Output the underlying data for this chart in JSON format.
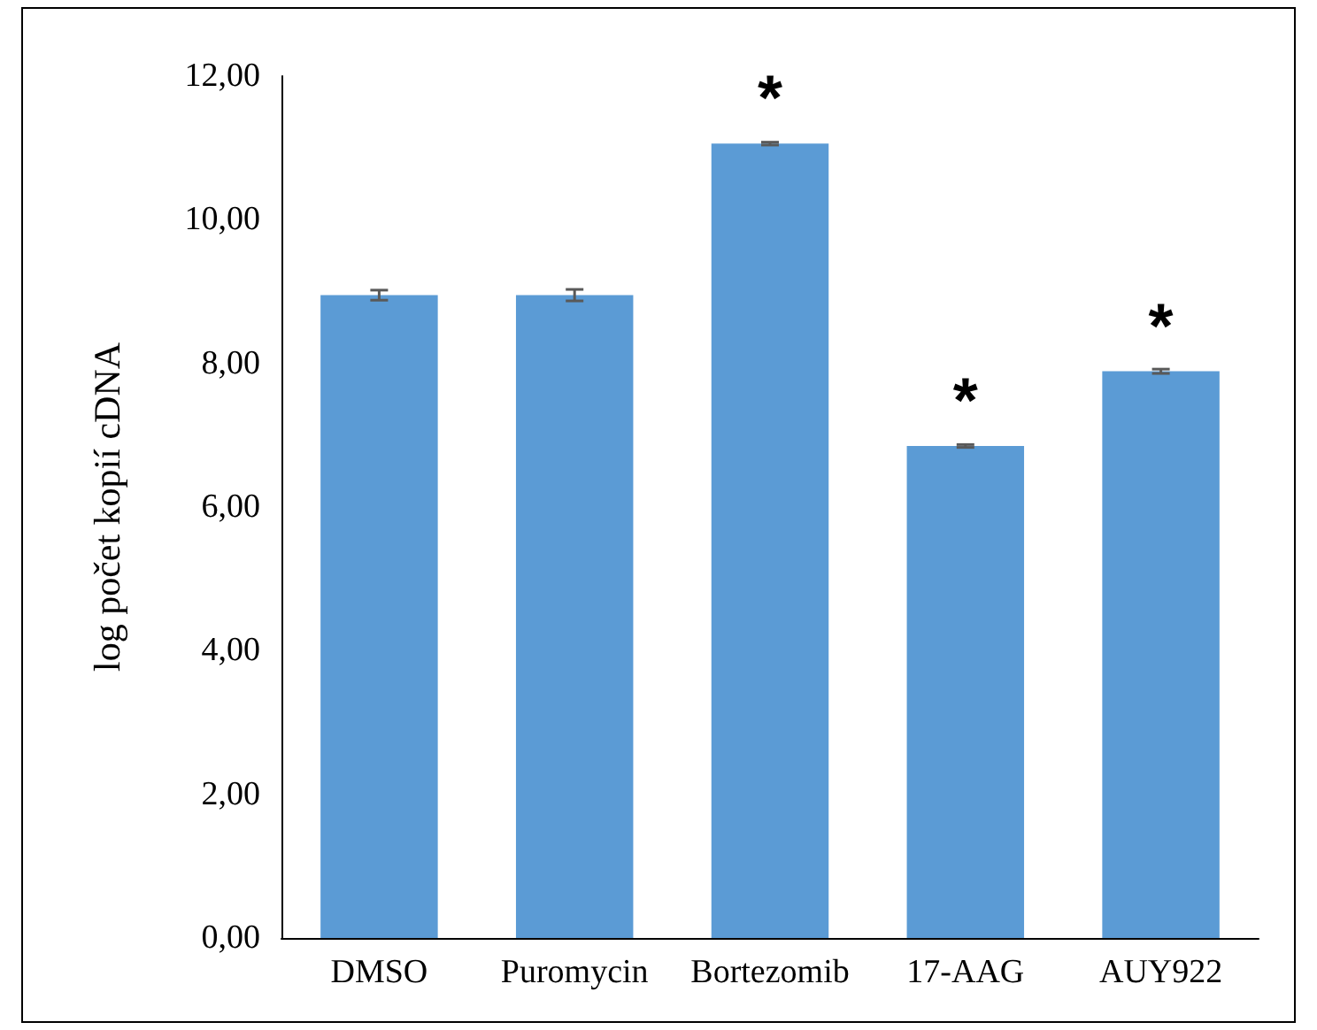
{
  "chart_data": {
    "type": "bar",
    "ylabel": "log počet kopií cDNA",
    "categories": [
      "DMSO",
      "Puromycin",
      "Bortezomib",
      "17-AAG",
      "AUY922"
    ],
    "values": [
      8.95,
      8.95,
      11.06,
      6.85,
      7.89
    ],
    "errors": [
      0.07,
      0.08,
      0.02,
      0.02,
      0.03
    ],
    "color": "#5b9bd5",
    "ylim": [
      0,
      12
    ],
    "yticks": [
      {
        "value": 0,
        "label": "0,00"
      },
      {
        "value": 2,
        "label": "2,00"
      },
      {
        "value": 4,
        "label": "4,00"
      },
      {
        "value": 6,
        "label": "6,00"
      },
      {
        "value": 8,
        "label": "8,00"
      },
      {
        "value": 10,
        "label": "10,00"
      },
      {
        "value": 12,
        "label": "12,00"
      }
    ],
    "grid": false,
    "annotations": [
      {
        "text": "*",
        "x": "Bortezomib",
        "y": 11.06
      },
      {
        "text": "*",
        "x": "17-AAG",
        "y": 6.85
      },
      {
        "text": "*",
        "x": "AUY922",
        "y": 7.89
      }
    ]
  }
}
